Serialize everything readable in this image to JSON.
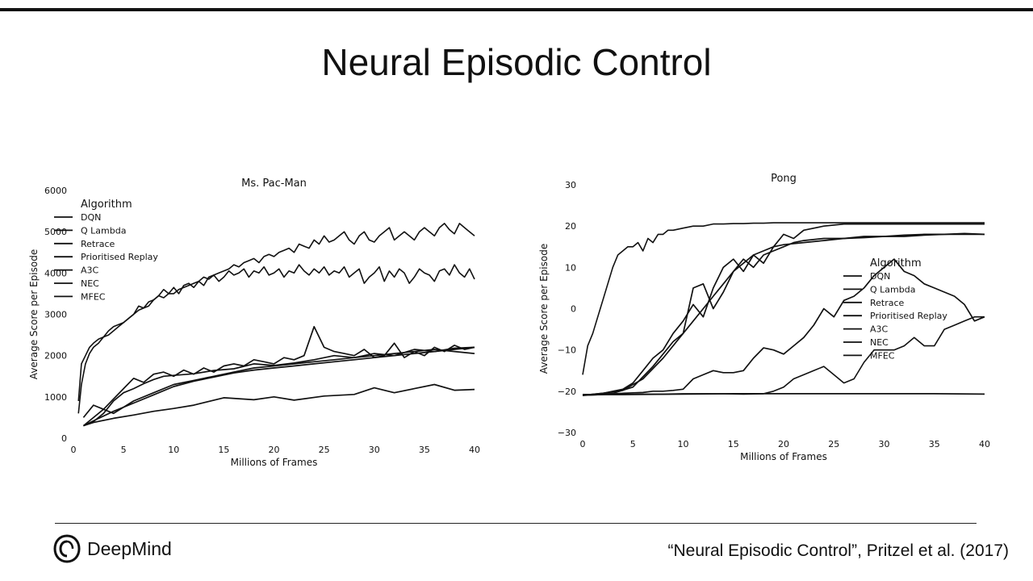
{
  "slide": {
    "title": "Neural Episodic Control",
    "logo_text": "DeepMind",
    "citation": "“Neural Episodic Control”, Pritzel et al. (2017)"
  },
  "chart_data": [
    {
      "type": "line",
      "title": "Ms. Pac-Man",
      "xlabel": "Millions of Frames",
      "ylabel": "Average Score per Episode",
      "xlim": [
        0,
        40
      ],
      "ylim": [
        0,
        6000
      ],
      "xticks": [
        "0",
        "5",
        "10",
        "15",
        "20",
        "25",
        "30",
        "35",
        "40"
      ],
      "yticks": [
        "0",
        "1000",
        "2000",
        "3000",
        "4000",
        "5000",
        "6000"
      ],
      "legend_title": "Algorithm",
      "legend_position": "top-left",
      "series": [
        {
          "name": "DQN",
          "x": [
            1,
            2,
            4,
            6,
            8,
            10,
            12,
            15,
            18,
            20,
            22,
            25,
            28,
            30,
            32,
            34,
            36,
            38,
            40
          ],
          "y": [
            300,
            380,
            480,
            560,
            650,
            720,
            800,
            980,
            930,
            1000,
            920,
            1020,
            1060,
            1220,
            1100,
            1200,
            1300,
            1160,
            1180
          ]
        },
        {
          "name": "Q Lambda",
          "x": [
            1,
            2,
            3,
            4,
            5,
            6,
            7,
            8,
            9,
            10,
            12,
            14,
            16,
            18,
            20,
            22,
            24,
            26,
            28,
            30,
            32,
            34,
            36,
            38,
            40
          ],
          "y": [
            300,
            400,
            600,
            900,
            1100,
            1200,
            1320,
            1420,
            1500,
            1520,
            1560,
            1640,
            1680,
            1800,
            1760,
            1820,
            1900,
            2000,
            1950,
            2050,
            2000,
            2150,
            2100,
            2180,
            2200
          ]
        },
        {
          "name": "Retrace",
          "x": [
            1,
            2,
            4,
            6,
            8,
            10,
            12,
            14,
            16,
            18,
            20,
            22,
            24,
            26,
            28,
            30,
            32,
            34,
            36,
            38,
            40
          ],
          "y": [
            500,
            800,
            600,
            900,
            1100,
            1300,
            1400,
            1500,
            1600,
            1700,
            1750,
            1800,
            1850,
            1900,
            1950,
            2000,
            2050,
            2100,
            2150,
            2100,
            2050
          ]
        },
        {
          "name": "Prioritised Replay",
          "x": [
            1,
            2,
            4,
            6,
            8,
            10,
            12,
            14,
            16,
            18,
            20,
            22,
            24,
            26,
            28,
            30,
            32,
            34,
            36,
            38,
            40
          ],
          "y": [
            300,
            420,
            650,
            850,
            1050,
            1250,
            1380,
            1480,
            1580,
            1650,
            1700,
            1750,
            1800,
            1850,
            1900,
            1950,
            2000,
            2050,
            2100,
            2150,
            2200
          ]
        },
        {
          "name": "A3C",
          "x": [
            1,
            3,
            5,
            6,
            7,
            8,
            9,
            10,
            11,
            12,
            13,
            14,
            15,
            16,
            17,
            18,
            19,
            20,
            21,
            22,
            23,
            24,
            25,
            26,
            27,
            28,
            29,
            30,
            31,
            32,
            33,
            34,
            35,
            36,
            37,
            38,
            39,
            40
          ],
          "y": [
            300,
            700,
            1200,
            1450,
            1350,
            1550,
            1600,
            1500,
            1650,
            1550,
            1700,
            1600,
            1750,
            1800,
            1750,
            1900,
            1850,
            1800,
            1950,
            1900,
            2000,
            2700,
            2200,
            2100,
            2050,
            2000,
            2150,
            1950,
            2000,
            2300,
            1950,
            2100,
            2000,
            2200,
            2100,
            2250,
            2150,
            2200
          ]
        },
        {
          "name": "NEC",
          "x": [
            0.5,
            0.8,
            1.2,
            1.6,
            2,
            2.5,
            3,
            3.5,
            4,
            4.5,
            5,
            5.5,
            6,
            6.5,
            7,
            7.5,
            8,
            8.5,
            9,
            9.5,
            10,
            10.5,
            11,
            11.5,
            12,
            12.5,
            13,
            13.5,
            14,
            14.5,
            15,
            15.5,
            16,
            16.5,
            17,
            17.5,
            18,
            18.5,
            19,
            19.5,
            20,
            20.5,
            21,
            21.5,
            22,
            22.5,
            23,
            23.5,
            24,
            24.5,
            25,
            25.5,
            26,
            26.5,
            27,
            27.5,
            28,
            28.5,
            29,
            29.5,
            30,
            30.5,
            31,
            31.5,
            32,
            32.5,
            33,
            33.5,
            34,
            34.5,
            35,
            35.5,
            36,
            36.5,
            37,
            37.5,
            38,
            38.5,
            39,
            39.5,
            40
          ],
          "y": [
            600,
            1300,
            1800,
            2050,
            2200,
            2300,
            2450,
            2500,
            2600,
            2700,
            2800,
            2900,
            3000,
            3200,
            3150,
            3300,
            3350,
            3450,
            3600,
            3500,
            3650,
            3500,
            3700,
            3750,
            3650,
            3800,
            3900,
            3850,
            3950,
            3800,
            3900,
            4050,
            3950,
            4000,
            4100,
            3900,
            4050,
            4000,
            4150,
            3950,
            4000,
            4100,
            3900,
            4050,
            4000,
            4200,
            4050,
            3950,
            4100,
            4000,
            4150,
            3950,
            4050,
            4000,
            4150,
            3900,
            4000,
            4100,
            3750,
            3900,
            4000,
            4150,
            3800,
            4050,
            3900,
            4100,
            4000,
            3750,
            3900,
            4100,
            4000,
            3950,
            3800,
            4050,
            4100,
            3950,
            4200,
            4000,
            3900,
            4100,
            3850
          ]
        },
        {
          "name": "MFEC",
          "x": [
            0.5,
            0.8,
            1.2,
            1.6,
            2,
            2.5,
            3,
            3.5,
            4,
            4.5,
            5,
            5.5,
            6,
            6.5,
            7,
            7.5,
            8,
            8.5,
            9,
            9.5,
            10,
            10.5,
            11,
            11.5,
            12,
            12.5,
            13,
            13.5,
            14,
            14.5,
            15,
            15.5,
            16,
            16.5,
            17,
            17.5,
            18,
            18.5,
            19,
            19.5,
            20,
            20.5,
            21,
            21.5,
            22,
            22.5,
            23,
            23.5,
            24,
            24.5,
            25,
            25.5,
            26,
            26.5,
            27,
            27.5,
            28,
            28.5,
            29,
            29.5,
            30,
            30.5,
            31,
            31.5,
            32,
            32.5,
            33,
            33.5,
            34,
            34.5,
            35,
            35.5,
            36,
            36.5,
            37,
            37.5,
            38,
            38.5,
            39,
            39.5,
            40
          ],
          "y": [
            900,
            1800,
            2000,
            2200,
            2300,
            2400,
            2450,
            2600,
            2700,
            2750,
            2800,
            2900,
            3000,
            3100,
            3150,
            3200,
            3350,
            3450,
            3400,
            3500,
            3500,
            3600,
            3650,
            3700,
            3750,
            3800,
            3700,
            3900,
            3950,
            4000,
            4050,
            4100,
            4200,
            4150,
            4250,
            4300,
            4350,
            4250,
            4400,
            4450,
            4400,
            4500,
            4550,
            4600,
            4500,
            4700,
            4650,
            4600,
            4800,
            4700,
            4900,
            4750,
            4800,
            4900,
            5000,
            4800,
            4700,
            4900,
            5000,
            4800,
            4750,
            4900,
            5000,
            5100,
            4800,
            4900,
            5000,
            4900,
            4800,
            5000,
            5100,
            5000,
            4900,
            5100,
            5200,
            5050,
            4950,
            5200,
            5100,
            5000,
            4900
          ]
        }
      ]
    },
    {
      "type": "line",
      "title": "Pong",
      "xlabel": "Millions of Frames",
      "ylabel": "Average Score per Episode",
      "xlim": [
        0,
        40
      ],
      "ylim": [
        -30,
        30
      ],
      "xticks": [
        "0",
        "5",
        "10",
        "15",
        "20",
        "25",
        "30",
        "35",
        "40"
      ],
      "yticks": [
        "−30",
        "−20",
        "−10",
        "0",
        "10",
        "20",
        "30"
      ],
      "legend_title": "Algorithm",
      "legend_position": "center-right",
      "series": [
        {
          "name": "DQN",
          "x": [
            0,
            5,
            10,
            15,
            20,
            25,
            30,
            35,
            40
          ],
          "y": [
            -20.8,
            -20.8,
            -20.7,
            -20.6,
            -20.6,
            -20.6,
            -20.6,
            -20.6,
            -20.7
          ]
        },
        {
          "name": "Q Lambda",
          "x": [
            0,
            2,
            4,
            6,
            8,
            10,
            11,
            12,
            13,
            14,
            15,
            16,
            17,
            18,
            19,
            20,
            21,
            22,
            24,
            26,
            28,
            30,
            32,
            34,
            36,
            38,
            40
          ],
          "y": [
            -21,
            -20.5,
            -19.8,
            -17,
            -12,
            -6,
            5,
            6,
            0,
            4,
            9,
            12,
            10,
            13,
            14,
            15,
            16,
            16.5,
            17,
            17,
            17.5,
            17.5,
            17.8,
            18,
            18,
            18.2,
            18
          ]
        },
        {
          "name": "Retrace",
          "x": [
            0,
            2,
            4,
            5,
            6,
            7,
            8,
            9,
            10,
            11,
            12,
            13,
            14,
            15,
            16,
            17,
            18,
            19,
            20,
            21,
            22,
            24,
            26,
            28,
            30,
            32,
            34,
            36,
            38,
            40
          ],
          "y": [
            -21,
            -20.5,
            -19.5,
            -18,
            -15,
            -12,
            -10,
            -6,
            -3,
            1,
            -2,
            5,
            10,
            12,
            9,
            13,
            11,
            15,
            18,
            17,
            19,
            20,
            20.5,
            20.5,
            20.5,
            20.5,
            20.5,
            20.5,
            20.5,
            20.5
          ]
        },
        {
          "name": "Prioritised Replay",
          "x": [
            0,
            3,
            5,
            7,
            8,
            9,
            10,
            11,
            12,
            13,
            14,
            15,
            16,
            17,
            18,
            19,
            20,
            22,
            24,
            26,
            28,
            30,
            32,
            34,
            36,
            38,
            40
          ],
          "y": [
            -21,
            -20.5,
            -19,
            -14,
            -11,
            -8,
            -6,
            -3,
            0,
            3,
            6,
            9,
            11,
            13,
            14,
            15,
            15.5,
            16,
            16.5,
            17,
            17.2,
            17.5,
            17.5,
            17.8,
            18,
            18,
            18
          ]
        },
        {
          "name": "A3C",
          "x": [
            0,
            2,
            4,
            6,
            7,
            8,
            9,
            10,
            11,
            12,
            13,
            14,
            15,
            16,
            17,
            18,
            19,
            20,
            21,
            22,
            23,
            24,
            25,
            26,
            27,
            28,
            29,
            30,
            31,
            32,
            33,
            34,
            35,
            36,
            37,
            38,
            39,
            40
          ],
          "y": [
            -21,
            -20.8,
            -20.5,
            -20.3,
            -20,
            -20,
            -19.8,
            -19.5,
            -17,
            -16,
            -15,
            -15.5,
            -15.5,
            -15,
            -12,
            -9.5,
            -10,
            -11,
            -9,
            -7,
            -4,
            0,
            -2,
            2,
            3,
            5,
            8,
            10,
            12,
            9,
            8,
            6,
            5,
            4,
            3,
            1,
            -3,
            -2
          ]
        },
        {
          "name": "NEC",
          "x": [
            0,
            2,
            4,
            6,
            8,
            10,
            12,
            14,
            16,
            18,
            19,
            20,
            21,
            22,
            23,
            24,
            25,
            26,
            27,
            28,
            29,
            30,
            31,
            32,
            33,
            34,
            35,
            36,
            37,
            38,
            39,
            40
          ],
          "y": [
            -21,
            -20.8,
            -20.8,
            -20.7,
            -20.7,
            -20.6,
            -20.6,
            -20.6,
            -20.7,
            -20.6,
            -20,
            -19,
            -17,
            -16,
            -15,
            -14,
            -16,
            -18,
            -17,
            -13,
            -10,
            -10,
            -10,
            -9,
            -7,
            -9,
            -9,
            -5,
            -4,
            -3,
            -2,
            -2
          ]
        },
        {
          "name": "MFEC",
          "x": [
            0,
            0.5,
            1,
            1.5,
            2,
            2.5,
            3,
            3.5,
            4,
            4.5,
            5,
            5.5,
            6,
            6.5,
            7,
            7.5,
            8,
            8.5,
            9,
            10,
            11,
            12,
            13,
            14,
            15,
            16,
            17,
            18,
            19,
            20,
            22,
            24,
            26,
            28,
            30,
            32,
            34,
            36,
            38,
            40
          ],
          "y": [
            -16,
            -9,
            -6,
            -2,
            2,
            6,
            10,
            13,
            14,
            15,
            15,
            16,
            14,
            17,
            16,
            18,
            18,
            19,
            19,
            19.5,
            20,
            20,
            20.5,
            20.5,
            20.6,
            20.6,
            20.7,
            20.7,
            20.8,
            20.8,
            20.8,
            20.8,
            20.8,
            20.8,
            20.8,
            20.8,
            20.8,
            20.8,
            20.8,
            20.8
          ]
        }
      ]
    }
  ]
}
